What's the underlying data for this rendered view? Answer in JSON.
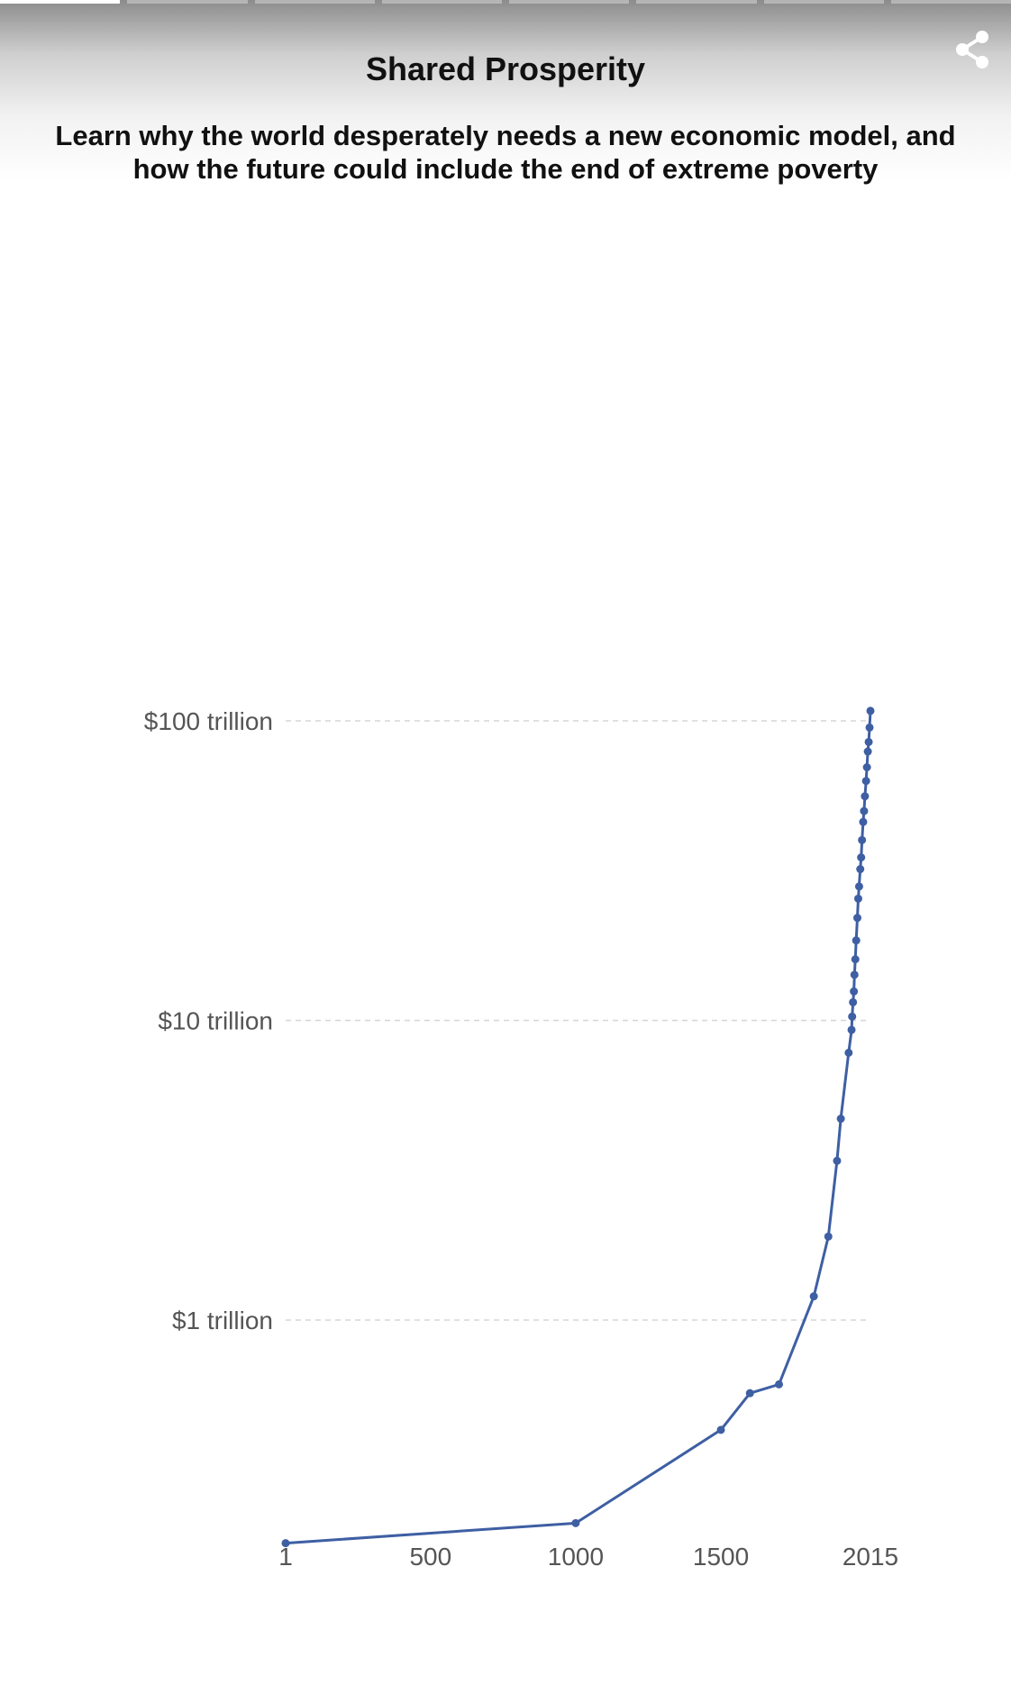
{
  "header": {
    "title": "Shared Prosperity",
    "subtitle": "Learn why the world desperately needs a new economic model, and how the future could include the end of extreme poverty",
    "progress_segments": 8,
    "active_segment": 0
  },
  "colors": {
    "line": "#3e5fa3",
    "grid": "#d6d6d6",
    "tick_text": "#555555"
  },
  "chart_data": {
    "type": "line",
    "title": "",
    "xlabel": "",
    "ylabel": "",
    "y_scale": "log",
    "grid": "horizontal dashed",
    "xlim": [
      1,
      2015
    ],
    "ylim": [
      0.1,
      100
    ],
    "x_ticks": [
      1,
      500,
      1000,
      1500,
      2015
    ],
    "x_tick_labels": [
      "1",
      "500",
      "1000",
      "1500",
      "2015"
    ],
    "y_ticks": [
      1,
      10,
      100
    ],
    "y_tick_labels": [
      "$1 trillion",
      "$10 trillion",
      "$100 trillion"
    ],
    "series": [
      {
        "values_unit": "trillion USD",
        "points": [
          {
            "x": 1,
            "y": 0.18
          },
          {
            "x": 1000,
            "y": 0.21
          },
          {
            "x": 1500,
            "y": 0.43
          },
          {
            "x": 1600,
            "y": 0.57
          },
          {
            "x": 1700,
            "y": 0.61
          },
          {
            "x": 1820,
            "y": 1.2
          },
          {
            "x": 1870,
            "y": 1.9
          },
          {
            "x": 1900,
            "y": 3.4
          },
          {
            "x": 1913,
            "y": 4.7
          },
          {
            "x": 1940,
            "y": 7.8
          },
          {
            "x": 1950,
            "y": 9.3
          },
          {
            "x": 1952,
            "y": 10.3
          },
          {
            "x": 1955,
            "y": 11.5
          },
          {
            "x": 1958,
            "y": 12.5
          },
          {
            "x": 1960,
            "y": 14.2
          },
          {
            "x": 1963,
            "y": 16.0
          },
          {
            "x": 1966,
            "y": 18.5
          },
          {
            "x": 1970,
            "y": 22.0
          },
          {
            "x": 1973,
            "y": 25.5
          },
          {
            "x": 1976,
            "y": 28.0
          },
          {
            "x": 1980,
            "y": 32.0
          },
          {
            "x": 1983,
            "y": 35.0
          },
          {
            "x": 1986,
            "y": 40.0
          },
          {
            "x": 1990,
            "y": 46.0
          },
          {
            "x": 1993,
            "y": 50.0
          },
          {
            "x": 1996,
            "y": 56.0
          },
          {
            "x": 2000,
            "y": 63.0
          },
          {
            "x": 2003,
            "y": 70.0
          },
          {
            "x": 2006,
            "y": 79.0
          },
          {
            "x": 2009,
            "y": 85.0
          },
          {
            "x": 2012,
            "y": 95.0
          },
          {
            "x": 2015,
            "y": 108.0
          }
        ]
      }
    ]
  }
}
